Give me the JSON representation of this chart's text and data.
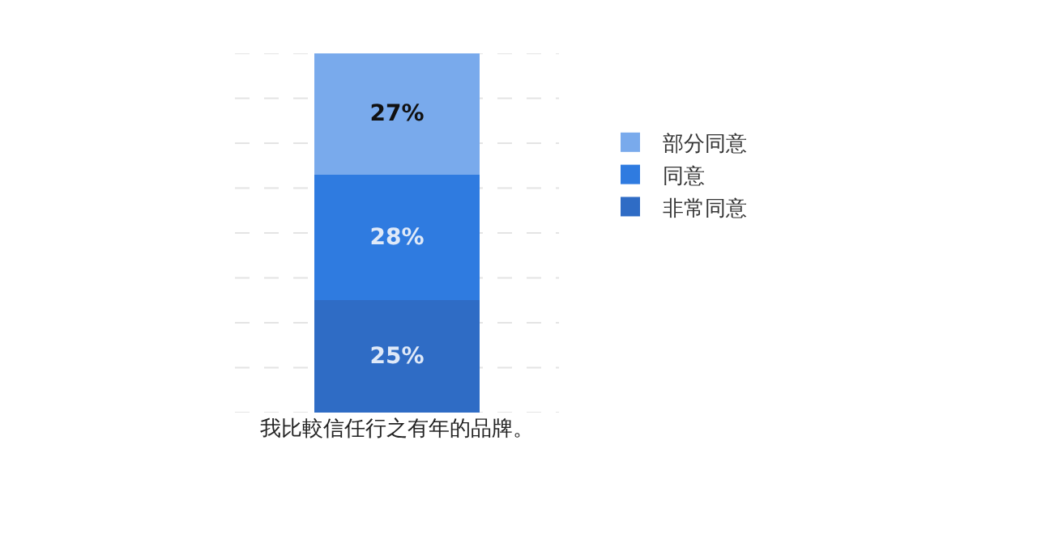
{
  "chart_data": {
    "type": "bar",
    "stacked": true,
    "categories": [
      "我比較信任行之有年的品牌。"
    ],
    "series": [
      {
        "name": "非常同意",
        "color": "#2f6cc5",
        "values": [
          25
        ],
        "value_labels": [
          "25%"
        ]
      },
      {
        "name": "同意",
        "color": "#2f7be0",
        "values": [
          28
        ],
        "value_labels": [
          "28%"
        ]
      },
      {
        "name": "部分同意",
        "color": "#79aaec",
        "values": [
          27
        ],
        "value_labels": [
          "27%"
        ]
      }
    ],
    "ylim": [
      0,
      80
    ],
    "yticks": [
      {
        "value": 0,
        "label": null
      },
      {
        "value": 10,
        "label": null
      },
      {
        "value": 20,
        "label": null
      },
      {
        "value": 30,
        "label": null
      },
      {
        "value": 40,
        "label": null
      },
      {
        "value": 50,
        "label": null
      },
      {
        "value": 60,
        "label": null
      },
      {
        "value": 70,
        "label": null
      },
      {
        "value": 80,
        "label": null
      }
    ],
    "grid": "y",
    "tick_labels": "x",
    "legend": "right"
  }
}
